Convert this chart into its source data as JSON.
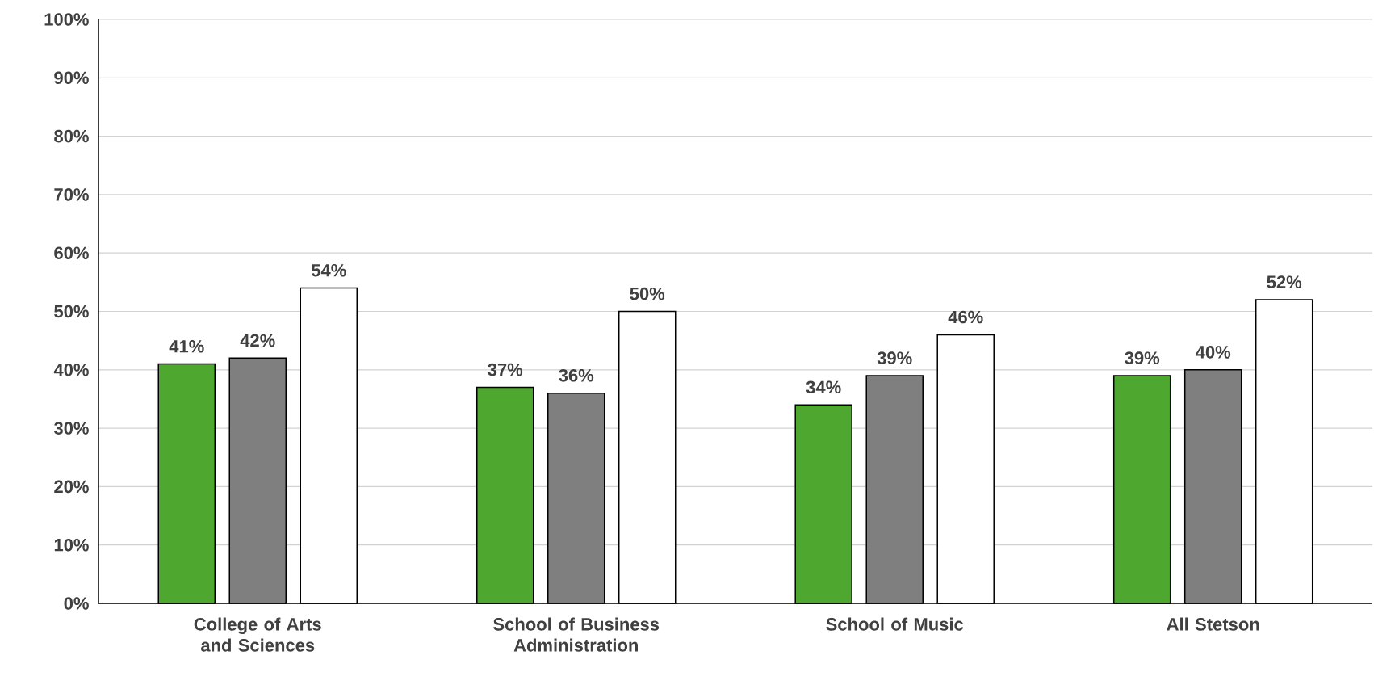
{
  "chart_data": {
    "type": "bar",
    "categories": [
      "College of Arts and Sciences",
      "School of Business Administration",
      "School of Music",
      "All Stetson"
    ],
    "series": [
      {
        "color": "#4ea72e",
        "values": [
          41,
          37,
          34,
          39
        ],
        "value_labels": [
          "41%",
          "37%",
          "34%",
          "39%"
        ]
      },
      {
        "color": "#7f7f7f",
        "values": [
          42,
          36,
          39,
          40
        ],
        "value_labels": [
          "42%",
          "36%",
          "39%",
          "40%"
        ]
      },
      {
        "color": "#ffffff",
        "values": [
          54,
          50,
          46,
          52
        ],
        "value_labels": [
          "54%",
          "50%",
          "46%",
          "52%"
        ]
      }
    ],
    "ylim": [
      0,
      100
    ],
    "yticks": [
      {
        "value": 0,
        "label": "0%"
      },
      {
        "value": 10,
        "label": "10%"
      },
      {
        "value": 20,
        "label": "20%"
      },
      {
        "value": 30,
        "label": "30%"
      },
      {
        "value": 40,
        "label": "40%"
      },
      {
        "value": 50,
        "label": "50%"
      },
      {
        "value": 60,
        "label": "60%"
      },
      {
        "value": 70,
        "label": "70%"
      },
      {
        "value": 80,
        "label": "80%"
      },
      {
        "value": 90,
        "label": "90%"
      },
      {
        "value": 100,
        "label": "100%"
      }
    ],
    "grid": "y"
  }
}
